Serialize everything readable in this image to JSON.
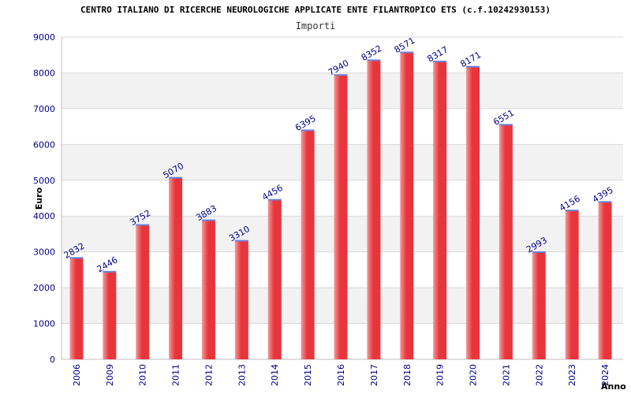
{
  "colors": {
    "bar_main": "#e8353c",
    "bar_light": "#f29a9a",
    "bar_top": "#6f7fd6",
    "band": "#f2f2f2",
    "grid": "#d9d9d9",
    "tick_text": "#00008b"
  },
  "chart_data": {
    "type": "bar",
    "title": "CENTRO ITALIANO DI RICERCHE NEUROLOGICHE APPLICATE ENTE FILANTROPICO ETS (c.f.10242930153)",
    "subtitle": "Importi",
    "xlabel": "Anno",
    "ylabel": "Euro",
    "ylim": [
      0,
      9000
    ],
    "yticks": [
      0,
      1000,
      2000,
      3000,
      4000,
      5000,
      6000,
      7000,
      8000,
      9000
    ],
    "categories": [
      "2006",
      "2009",
      "2010",
      "2011",
      "2012",
      "2013",
      "2014",
      "2015",
      "2016",
      "2017",
      "2018",
      "2019",
      "2020",
      "2021",
      "2022",
      "2023",
      "2024"
    ],
    "values": [
      2832,
      2446,
      3752,
      5070,
      3883,
      3310,
      4456,
      6395,
      7940,
      8352,
      8571,
      8317,
      8171,
      6551,
      2993,
      4156,
      4395
    ],
    "grid": true,
    "alternating_bands": true,
    "data_labels": true
  }
}
